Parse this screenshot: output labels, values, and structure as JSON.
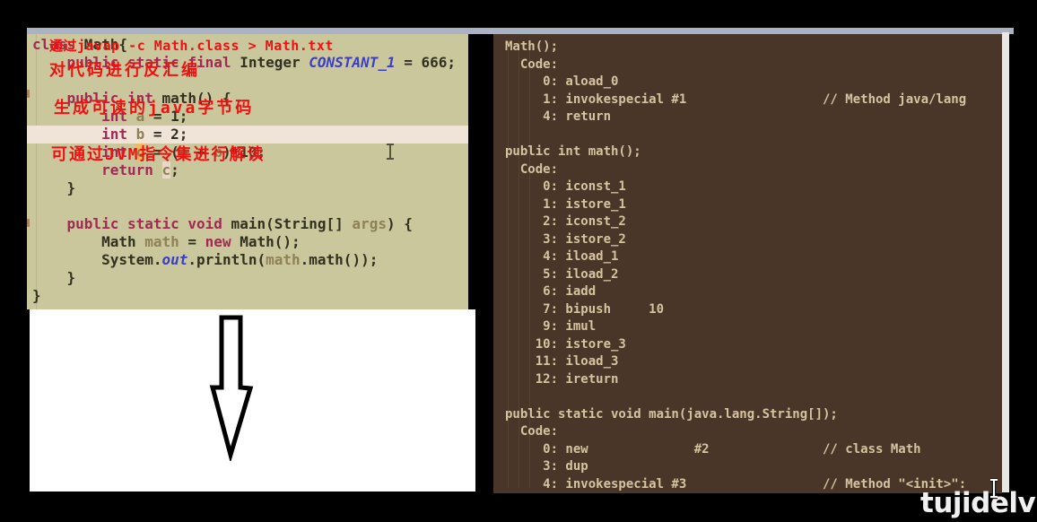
{
  "window": {
    "watermark": "tujidelv"
  },
  "colors": {
    "editor_bg": "#c9c79b",
    "editor_line_highlight": "#f0e3d8",
    "keyword": "#a02a52",
    "plain_text": "#32301f",
    "variable": "#8f8156",
    "blue_identifier": "#3a3ec8",
    "char_highlight_orange": "#f2b95e",
    "char_highlight_pink": "#ead7ca",
    "console_bg": "#4a3628",
    "console_text": "#d6c3a0",
    "annotation_red": "#ee1111",
    "top_strip": "#a9b3c5",
    "scrollbar": "#e9e7e4"
  },
  "icons": {
    "text_cursor": "I-beam text cursor",
    "down_arrow": "hand-drawn outlined down arrow"
  },
  "left_editor": {
    "lines": [
      {
        "tokens": [
          {
            "c": "kw",
            "t": "class"
          },
          {
            "c": "pl",
            "t": " Math{"
          }
        ]
      },
      {
        "tokens": [
          {
            "c": "pl",
            "t": "    "
          },
          {
            "c": "kw",
            "t": "public static final"
          },
          {
            "c": "pl",
            "t": " Integer "
          },
          {
            "c": "bl",
            "t": "CONSTANT_1"
          },
          {
            "c": "pl",
            "t": " = 666;"
          }
        ]
      },
      {
        "tokens": []
      },
      {
        "tokens": [
          {
            "c": "pl",
            "t": "    "
          },
          {
            "c": "kw",
            "t": "public int"
          },
          {
            "c": "pl",
            "t": " math() {"
          }
        ]
      },
      {
        "tokens": [
          {
            "c": "pl",
            "t": "        "
          },
          {
            "c": "kw",
            "t": "int"
          },
          {
            "c": "pl",
            "t": " "
          },
          {
            "c": "vr",
            "t": "a"
          },
          {
            "c": "pl",
            "t": " = 1;"
          }
        ]
      },
      {
        "hl": true,
        "tokens": [
          {
            "c": "pl",
            "t": "        "
          },
          {
            "c": "kw",
            "t": "int"
          },
          {
            "c": "pl",
            "t": " "
          },
          {
            "c": "vr",
            "t": "b"
          },
          {
            "c": "pl",
            "t": " = 2;"
          }
        ]
      },
      {
        "tokens": [
          {
            "c": "pl",
            "t": "        "
          },
          {
            "c": "kw",
            "t": "int"
          },
          {
            "c": "pl",
            "t": " "
          },
          {
            "c": "vr bg-or",
            "t": "c"
          },
          {
            "c": "pl",
            "t": " = ("
          },
          {
            "c": "vr",
            "t": "a"
          },
          {
            "c": "pl",
            "t": " + "
          },
          {
            "c": "vr",
            "t": "b"
          },
          {
            "c": "pl",
            "t": ")*10;"
          }
        ]
      },
      {
        "tokens": [
          {
            "c": "pl",
            "t": "        "
          },
          {
            "c": "kw",
            "t": "return"
          },
          {
            "c": "pl",
            "t": " "
          },
          {
            "c": "vr bg-pk",
            "t": "c"
          },
          {
            "c": "pl",
            "t": ";"
          }
        ]
      },
      {
        "tokens": [
          {
            "c": "pl",
            "t": "    }"
          }
        ]
      },
      {
        "tokens": []
      },
      {
        "tokens": [
          {
            "c": "pl",
            "t": "    "
          },
          {
            "c": "kw",
            "t": "public static void"
          },
          {
            "c": "pl",
            "t": " main(String[] "
          },
          {
            "c": "vr",
            "t": "args"
          },
          {
            "c": "pl",
            "t": ") {"
          }
        ]
      },
      {
        "tokens": [
          {
            "c": "pl",
            "t": "        Math "
          },
          {
            "c": "vr",
            "t": "math"
          },
          {
            "c": "pl",
            "t": " = "
          },
          {
            "c": "kw",
            "t": "new"
          },
          {
            "c": "pl",
            "t": " Math();"
          }
        ]
      },
      {
        "tokens": [
          {
            "c": "pl",
            "t": "        System."
          },
          {
            "c": "bl",
            "t": "out"
          },
          {
            "c": "pl",
            "t": ".println("
          },
          {
            "c": "vr",
            "t": "math"
          },
          {
            "c": "pl",
            "t": ".math());"
          }
        ]
      },
      {
        "tokens": [
          {
            "c": "pl",
            "t": "    }"
          }
        ]
      },
      {
        "tokens": [
          {
            "c": "pl",
            "t": "}"
          }
        ]
      }
    ]
  },
  "right_console": {
    "lines": [
      "Math();",
      "  Code:",
      "     0: aload_0",
      "     1: invokespecial #1                  // Method java/lang",
      "     4: return",
      "",
      "public int math();",
      "  Code:",
      "     0: iconst_1",
      "     1: istore_1",
      "     2: iconst_2",
      "     3: istore_2",
      "     4: iload_1",
      "     5: iload_2",
      "     6: iadd",
      "     7: bipush     10",
      "     9: imul",
      "    10: istore_3",
      "    11: iload_3",
      "    12: ireturn",
      "",
      "public static void main(java.lang.String[]);",
      "  Code:",
      "     0: new              #2               // class Math",
      "     3: dup",
      "     4: invokespecial #3                  // Method \"<init>\":",
      ""
    ]
  },
  "annotations": {
    "lines": [
      {
        "text": "通过javap -c Math.class > Math.txt"
      },
      {
        "text": "对代码进行反汇编"
      },
      {
        "text": "生成可读的java字节码"
      },
      {
        "text": "可通过JVM指令集进行解读"
      }
    ]
  }
}
